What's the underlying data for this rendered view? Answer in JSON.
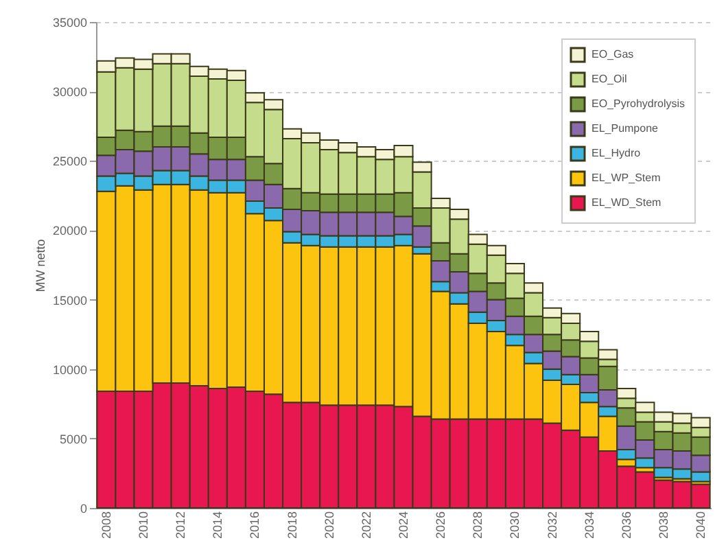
{
  "chart_data": {
    "type": "bar",
    "stacked": true,
    "ylabel": "MW netto",
    "ylim": [
      0,
      35000
    ],
    "yticks": [
      0,
      5000,
      10000,
      15000,
      20000,
      25000,
      30000,
      35000
    ],
    "grid": "y",
    "legend": "top right",
    "categories": [
      "2008",
      null,
      "2010",
      null,
      "2012",
      null,
      "2014",
      null,
      "2016",
      null,
      "2018",
      null,
      "2020",
      null,
      "2022",
      null,
      "2024",
      null,
      "2026",
      null,
      "2028",
      null,
      "2030",
      null,
      "2032",
      null,
      "2034",
      null,
      "2036",
      null,
      "2038",
      null,
      "2040"
    ],
    "series": [
      {
        "name": "EL_WD_Stem",
        "color": "#e8174f",
        "values": [
          8400,
          8400,
          8400,
          9000,
          9000,
          8800,
          8600,
          8700,
          8400,
          8200,
          7600,
          7600,
          7400,
          7400,
          7400,
          7400,
          7300,
          6600,
          6400,
          6400,
          6400,
          6400,
          6400,
          6400,
          6100,
          5600,
          5100,
          4100,
          3000,
          2600,
          2000,
          1900,
          1700
        ]
      },
      {
        "name": "EL_WP_Stem",
        "color": "#fcc30f",
        "values": [
          14400,
          14800,
          14500,
          14300,
          14300,
          14100,
          14100,
          14000,
          12800,
          12500,
          11500,
          11300,
          11400,
          11400,
          11400,
          11400,
          11600,
          11700,
          9200,
          8300,
          6900,
          6300,
          5300,
          4000,
          3100,
          3300,
          2500,
          2500,
          500,
          300,
          200,
          200,
          200
        ]
      },
      {
        "name": "EL_Hydro",
        "color": "#3cb6e0",
        "values": [
          1100,
          900,
          1000,
          1000,
          1000,
          1000,
          900,
          900,
          900,
          900,
          800,
          800,
          800,
          800,
          800,
          800,
          800,
          500,
          700,
          800,
          800,
          800,
          800,
          800,
          800,
          700,
          700,
          700,
          700,
          700,
          700,
          700,
          700
        ]
      },
      {
        "name": "EL_Pumpone",
        "color": "#8a6aac",
        "values": [
          1500,
          1700,
          1800,
          1700,
          1700,
          1600,
          1500,
          1500,
          1500,
          1700,
          1600,
          1700,
          1700,
          1700,
          1700,
          1700,
          1300,
          1500,
          1500,
          1500,
          1500,
          1500,
          1300,
          1300,
          1300,
          1300,
          1300,
          1200,
          1700,
          1300,
          1300,
          1300,
          1200
        ]
      },
      {
        "name": "EO_Pyrohydrolysis",
        "color": "#7a9a46",
        "values": [
          1300,
          1400,
          1400,
          1500,
          1500,
          1500,
          1600,
          1600,
          1700,
          1500,
          1500,
          1300,
          1300,
          1300,
          1300,
          1300,
          1700,
          1300,
          1300,
          1300,
          1300,
          1200,
          1300,
          1300,
          1200,
          1200,
          1200,
          1700,
          1300,
          1300,
          1300,
          1300,
          1300
        ]
      },
      {
        "name": "EO_Oil",
        "color": "#c5dc8c",
        "values": [
          4700,
          4500,
          4500,
          4500,
          4500,
          4100,
          4200,
          4100,
          3900,
          3900,
          3600,
          3600,
          3200,
          3000,
          2700,
          2500,
          2600,
          2600,
          2500,
          2500,
          2100,
          2000,
          1800,
          1700,
          1200,
          1200,
          1200,
          500,
          700,
          700,
          700,
          700,
          700
        ]
      },
      {
        "name": "EO_Gas",
        "color": "#f4f4d4",
        "values": [
          800,
          700,
          700,
          700,
          700,
          700,
          700,
          700,
          700,
          700,
          700,
          700,
          700,
          700,
          700,
          700,
          800,
          700,
          700,
          700,
          700,
          700,
          700,
          700,
          700,
          700,
          700,
          700,
          700,
          700,
          700,
          700,
          700
        ]
      }
    ]
  }
}
